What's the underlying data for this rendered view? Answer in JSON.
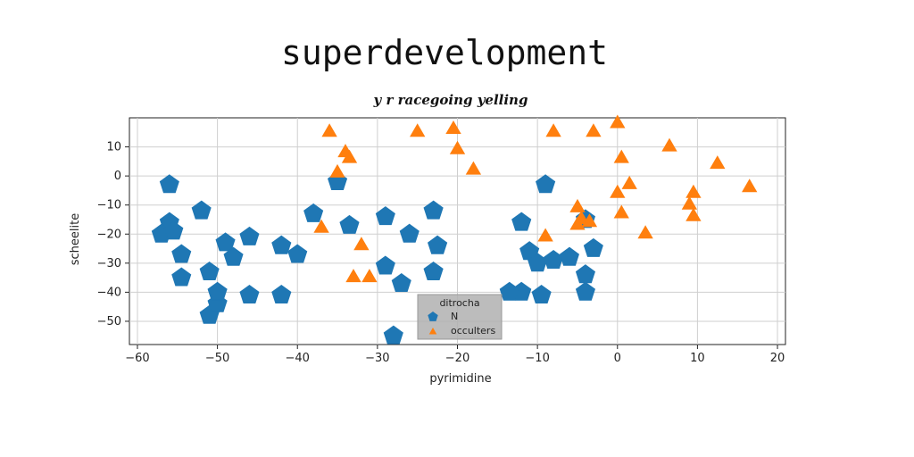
{
  "chart_data": {
    "type": "scatter",
    "title": "superdevelopment",
    "subtitle": "y r racegoing yelling",
    "xlabel": "pyrimidine",
    "ylabel": "scheelite",
    "xlim": [
      -61,
      21
    ],
    "ylim": [
      -58,
      20
    ],
    "xticks": [
      -60,
      -50,
      -40,
      -30,
      -20,
      -10,
      0,
      10,
      20
    ],
    "yticks": [
      10,
      0,
      -10,
      -20,
      -30,
      -40,
      -50
    ],
    "grid": true,
    "legend": {
      "title": "ditrocha",
      "placement": "lower-center"
    },
    "series": [
      {
        "name": "N",
        "color": "#1f77b4",
        "marker": "pentagon",
        "points": [
          [
            -56,
            -3
          ],
          [
            -52,
            -12
          ],
          [
            -56,
            -16
          ],
          [
            -57,
            -20
          ],
          [
            -55.5,
            -19
          ],
          [
            -54.5,
            -27
          ],
          [
            -54.5,
            -35
          ],
          [
            -51,
            -33
          ],
          [
            -49,
            -23
          ],
          [
            -48,
            -28
          ],
          [
            -46,
            -21
          ],
          [
            -46,
            -41
          ],
          [
            -42,
            -24
          ],
          [
            -42,
            -41
          ],
          [
            -40,
            -27
          ],
          [
            -38,
            -13
          ],
          [
            -35,
            -2
          ],
          [
            -33.5,
            -17
          ],
          [
            -29,
            -14
          ],
          [
            -26,
            -20
          ],
          [
            -29,
            -31
          ],
          [
            -27,
            -37
          ],
          [
            -23,
            -12
          ],
          [
            -22.5,
            -24
          ],
          [
            -23,
            -33
          ],
          [
            -28,
            -55
          ],
          [
            -12,
            -16
          ],
          [
            -11,
            -26
          ],
          [
            -10,
            -30
          ],
          [
            -12,
            -40
          ],
          [
            -13.5,
            -40
          ],
          [
            -9.5,
            -41
          ],
          [
            -9,
            -3
          ],
          [
            -8,
            -29
          ],
          [
            -6,
            -28
          ],
          [
            -4,
            -15
          ],
          [
            -3,
            -25
          ],
          [
            -4,
            -34
          ],
          [
            -4,
            -40
          ],
          [
            -51,
            -48
          ],
          [
            -50,
            -44
          ],
          [
            -50,
            -40
          ]
        ]
      },
      {
        "name": "occulters",
        "color": "#ff7f0e",
        "marker": "triangle",
        "points": [
          [
            -36,
            15
          ],
          [
            -34,
            8
          ],
          [
            -33.5,
            6
          ],
          [
            -35,
            1
          ],
          [
            -37,
            -18
          ],
          [
            -32,
            -24
          ],
          [
            -33,
            -35
          ],
          [
            -31,
            -35
          ],
          [
            -25,
            15
          ],
          [
            -20.5,
            16
          ],
          [
            -20,
            9
          ],
          [
            -18,
            2
          ],
          [
            -8,
            15
          ],
          [
            -3,
            15
          ],
          [
            -9,
            -21
          ],
          [
            -5,
            -11
          ],
          [
            -4.5,
            -15
          ],
          [
            -3.5,
            -16
          ],
          [
            -5,
            -17
          ],
          [
            0,
            18
          ],
          [
            0.5,
            6
          ],
          [
            1.5,
            -3
          ],
          [
            0,
            -6
          ],
          [
            0.5,
            -13
          ],
          [
            3.5,
            -20
          ],
          [
            6.5,
            10
          ],
          [
            9,
            -10
          ],
          [
            9.5,
            -6
          ],
          [
            9.5,
            -14
          ],
          [
            12.5,
            4
          ],
          [
            16.5,
            -4
          ]
        ]
      }
    ]
  }
}
